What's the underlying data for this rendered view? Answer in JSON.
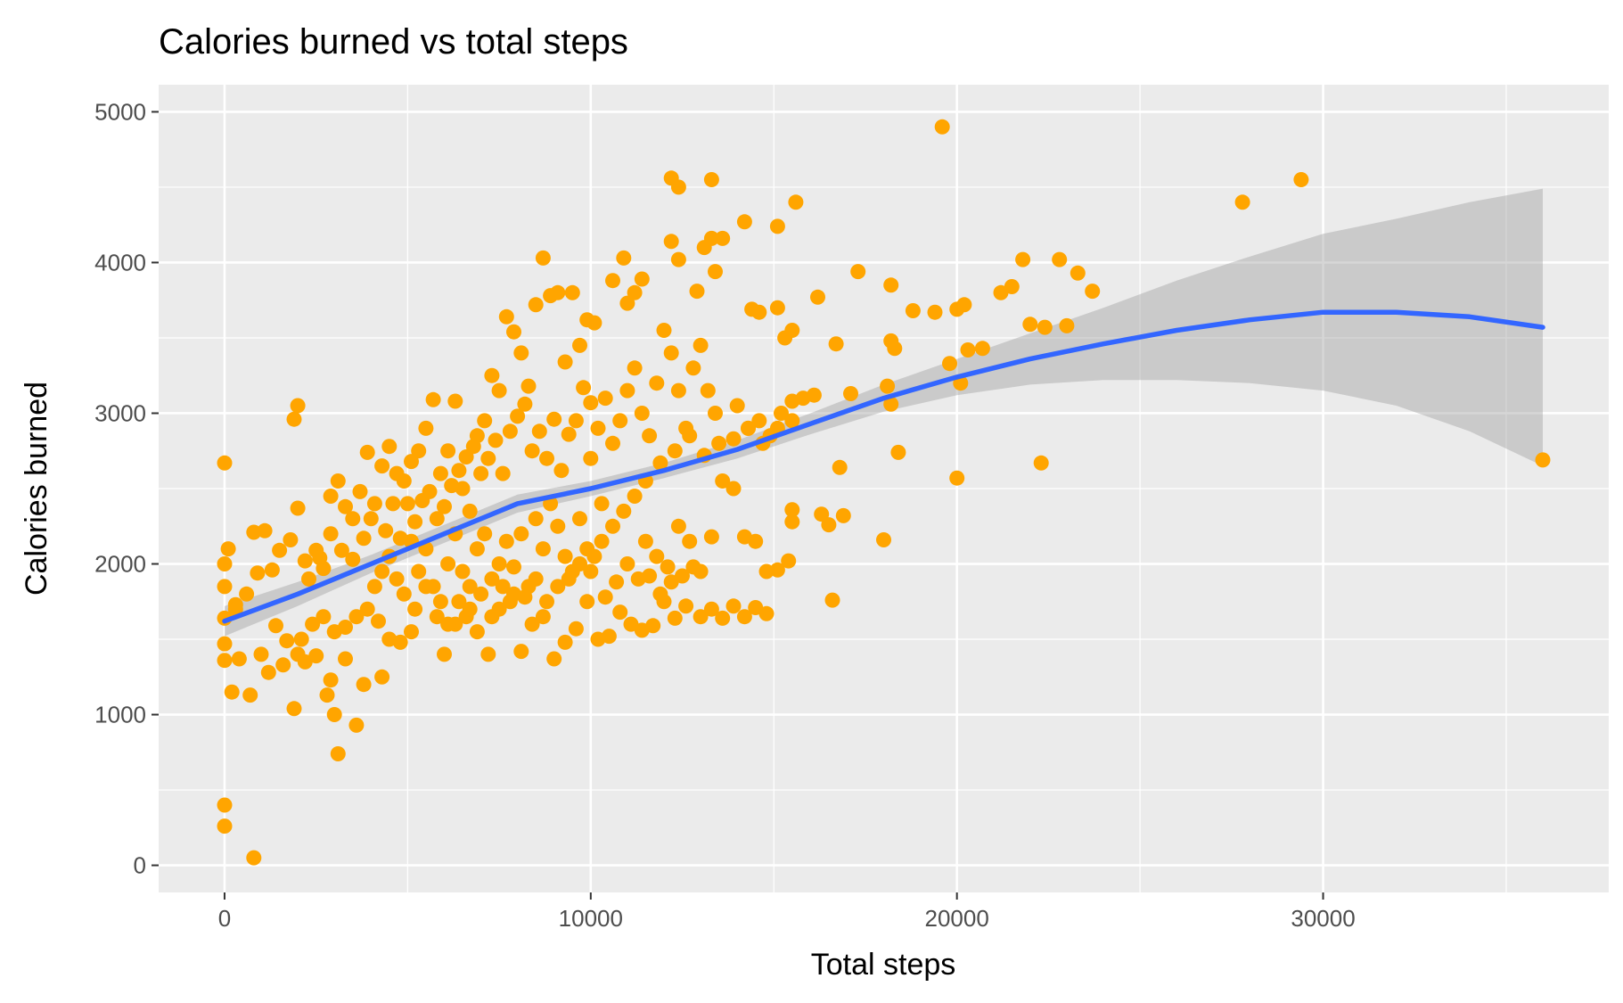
{
  "chart_data": {
    "type": "scatter",
    "title": "Calories burned vs total steps",
    "xlabel": "Total steps",
    "ylabel": "Calories burned",
    "xlim": [
      -1800,
      37800
    ],
    "ylim": [
      -180,
      5180
    ],
    "x_ticks": [
      0,
      10000,
      20000,
      30000
    ],
    "x_tick_labels": [
      "0",
      "10000",
      "20000",
      "30000"
    ],
    "y_ticks": [
      0,
      1000,
      2000,
      3000,
      4000,
      5000
    ],
    "y_tick_labels": [
      "0",
      "1000",
      "2000",
      "3000",
      "4000",
      "5000"
    ],
    "grid": true,
    "legend": "none",
    "colors": {
      "points": "#FFA500",
      "smooth_line": "#3366FF",
      "confidence_band": "#999999",
      "panel_background": "#EBEBEB",
      "grid": "#FFFFFF",
      "tick_text": "#4D4D4D"
    },
    "smooth": {
      "x": [
        0,
        2000,
        4000,
        6000,
        8000,
        10000,
        12000,
        14000,
        16000,
        18000,
        20000,
        22000,
        24000,
        26000,
        28000,
        30000,
        32000,
        34000,
        36000
      ],
      "y": [
        1620,
        1800,
        2000,
        2200,
        2400,
        2500,
        2620,
        2760,
        2930,
        3100,
        3240,
        3360,
        3460,
        3550,
        3620,
        3670,
        3670,
        3640,
        3570
      ],
      "ymin": [
        1520,
        1720,
        1940,
        2140,
        2340,
        2450,
        2570,
        2700,
        2860,
        3010,
        3120,
        3190,
        3220,
        3220,
        3200,
        3150,
        3050,
        2880,
        2650
      ],
      "ymax": [
        1720,
        1880,
        2060,
        2260,
        2460,
        2550,
        2670,
        2820,
        3000,
        3190,
        3360,
        3530,
        3700,
        3880,
        4040,
        4190,
        4290,
        4400,
        4490
      ]
    },
    "points": [
      [
        0,
        2670
      ],
      [
        0,
        2000
      ],
      [
        0,
        1850
      ],
      [
        0,
        1640
      ],
      [
        0,
        1470
      ],
      [
        0,
        1360
      ],
      [
        0,
        400
      ],
      [
        0,
        260
      ],
      [
        800,
        50
      ],
      [
        100,
        2100
      ],
      [
        300,
        1730
      ],
      [
        600,
        1800
      ],
      [
        200,
        1150
      ],
      [
        700,
        1130
      ],
      [
        400,
        1370
      ],
      [
        900,
        1940
      ],
      [
        800,
        2210
      ],
      [
        1100,
        2220
      ],
      [
        1300,
        1960
      ],
      [
        1500,
        2090
      ],
      [
        1800,
        2160
      ],
      [
        2000,
        2370
      ],
      [
        1900,
        2960
      ],
      [
        2000,
        3050
      ],
      [
        1200,
        1280
      ],
      [
        1600,
        1330
      ],
      [
        1900,
        1040
      ],
      [
        2200,
        1350
      ],
      [
        2500,
        1390
      ],
      [
        2800,
        1130
      ],
      [
        3000,
        1000
      ],
      [
        3100,
        740
      ],
      [
        2900,
        1230
      ],
      [
        3300,
        1370
      ],
      [
        3600,
        930
      ],
      [
        3800,
        1200
      ],
      [
        4300,
        1250
      ],
      [
        2100,
        1500
      ],
      [
        2400,
        1600
      ],
      [
        2700,
        1650
      ],
      [
        3000,
        1550
      ],
      [
        3300,
        1580
      ],
      [
        3600,
        1650
      ],
      [
        3900,
        1700
      ],
      [
        4200,
        1620
      ],
      [
        4500,
        1500
      ],
      [
        4800,
        1480
      ],
      [
        5100,
        1550
      ],
      [
        2200,
        2020
      ],
      [
        2500,
        2090
      ],
      [
        2700,
        1970
      ],
      [
        2900,
        2450
      ],
      [
        3100,
        2550
      ],
      [
        3300,
        2380
      ],
      [
        3500,
        2300
      ],
      [
        3700,
        2480
      ],
      [
        3900,
        2740
      ],
      [
        4100,
        2400
      ],
      [
        4300,
        2650
      ],
      [
        4500,
        2780
      ],
      [
        4700,
        2600
      ],
      [
        4900,
        2550
      ],
      [
        5100,
        2680
      ],
      [
        5300,
        2750
      ],
      [
        5500,
        2900
      ],
      [
        5700,
        3090
      ],
      [
        5900,
        2600
      ],
      [
        6100,
        2750
      ],
      [
        6300,
        3080
      ],
      [
        6500,
        2500
      ],
      [
        6700,
        2350
      ],
      [
        6900,
        2850
      ],
      [
        7100,
        2950
      ],
      [
        7300,
        3250
      ],
      [
        7500,
        3150
      ],
      [
        7700,
        3640
      ],
      [
        7900,
        3540
      ],
      [
        8100,
        3400
      ],
      [
        8300,
        3180
      ],
      [
        8500,
        3720
      ],
      [
        8700,
        4030
      ],
      [
        8900,
        3780
      ],
      [
        9100,
        3800
      ],
      [
        9300,
        3340
      ],
      [
        9500,
        3800
      ],
      [
        9700,
        3450
      ],
      [
        9900,
        3620
      ],
      [
        10100,
        3600
      ],
      [
        4100,
        1850
      ],
      [
        4300,
        1950
      ],
      [
        4500,
        2050
      ],
      [
        4700,
        1900
      ],
      [
        4900,
        1800
      ],
      [
        5100,
        2150
      ],
      [
        5300,
        1950
      ],
      [
        5500,
        2100
      ],
      [
        5700,
        1850
      ],
      [
        5900,
        1750
      ],
      [
        6100,
        2000
      ],
      [
        6300,
        2200
      ],
      [
        6500,
        1950
      ],
      [
        6700,
        1850
      ],
      [
        6900,
        2100
      ],
      [
        7100,
        2200
      ],
      [
        7300,
        1900
      ],
      [
        7500,
        2000
      ],
      [
        7700,
        2150
      ],
      [
        7900,
        1980
      ],
      [
        8100,
        2200
      ],
      [
        8300,
        1850
      ],
      [
        8500,
        2300
      ],
      [
        8700,
        2100
      ],
      [
        8900,
        2400
      ],
      [
        9100,
        2250
      ],
      [
        9300,
        2050
      ],
      [
        9500,
        1950
      ],
      [
        9700,
        2300
      ],
      [
        9900,
        2100
      ],
      [
        10100,
        2050
      ],
      [
        10300,
        2400
      ],
      [
        6000,
        1400
      ],
      [
        6300,
        1600
      ],
      [
        6600,
        1650
      ],
      [
        6900,
        1550
      ],
      [
        7200,
        1400
      ],
      [
        7500,
        1700
      ],
      [
        7800,
        1750
      ],
      [
        8100,
        1420
      ],
      [
        8400,
        1600
      ],
      [
        8700,
        1650
      ],
      [
        9000,
        1370
      ],
      [
        9300,
        1480
      ],
      [
        9600,
        1570
      ],
      [
        9900,
        1750
      ],
      [
        10200,
        1500
      ],
      [
        10500,
        1520
      ],
      [
        10800,
        1680
      ],
      [
        11100,
        1600
      ],
      [
        11400,
        1560
      ],
      [
        11700,
        1590
      ],
      [
        12000,
        1750
      ],
      [
        12300,
        1640
      ],
      [
        12600,
        1720
      ],
      [
        13000,
        1650
      ],
      [
        13300,
        1700
      ],
      [
        13600,
        1640
      ],
      [
        13900,
        1720
      ],
      [
        14200,
        1650
      ],
      [
        14500,
        1710
      ],
      [
        14800,
        1670
      ],
      [
        10000,
        2700
      ],
      [
        10200,
        2900
      ],
      [
        10400,
        3100
      ],
      [
        10600,
        2800
      ],
      [
        10800,
        2950
      ],
      [
        11000,
        3150
      ],
      [
        11200,
        3300
      ],
      [
        11400,
        3000
      ],
      [
        11600,
        2850
      ],
      [
        11800,
        3200
      ],
      [
        12000,
        3550
      ],
      [
        12200,
        3400
      ],
      [
        12400,
        3150
      ],
      [
        12600,
        2900
      ],
      [
        12800,
        3300
      ],
      [
        13000,
        3450
      ],
      [
        13200,
        3150
      ],
      [
        13400,
        3000
      ],
      [
        10600,
        3880
      ],
      [
        11000,
        3730
      ],
      [
        11200,
        3800
      ],
      [
        11400,
        3890
      ],
      [
        10900,
        4030
      ],
      [
        12200,
        4560
      ],
      [
        12400,
        4500
      ],
      [
        13300,
        4550
      ],
      [
        12200,
        4140
      ],
      [
        12400,
        4020
      ],
      [
        13100,
        4100
      ],
      [
        13300,
        4160
      ],
      [
        13600,
        4160
      ],
      [
        14200,
        4270
      ],
      [
        15100,
        4240
      ],
      [
        15600,
        4400
      ],
      [
        14400,
        3690
      ],
      [
        14600,
        3670
      ],
      [
        15100,
        3700
      ],
      [
        15300,
        3500
      ],
      [
        15500,
        3550
      ],
      [
        13400,
        3940
      ],
      [
        12900,
        3810
      ],
      [
        16200,
        3770
      ],
      [
        14000,
        3050
      ],
      [
        14300,
        2900
      ],
      [
        14600,
        2950
      ],
      [
        14900,
        2850
      ],
      [
        15200,
        3000
      ],
      [
        15500,
        3080
      ],
      [
        15800,
        3100
      ],
      [
        16100,
        3120
      ],
      [
        13600,
        2550
      ],
      [
        13900,
        2500
      ],
      [
        14200,
        2180
      ],
      [
        14500,
        2150
      ],
      [
        14800,
        1950
      ],
      [
        15100,
        1960
      ],
      [
        15400,
        2020
      ],
      [
        15500,
        2360
      ],
      [
        15500,
        2280
      ],
      [
        16300,
        2330
      ],
      [
        16500,
        2260
      ],
      [
        16900,
        2320
      ],
      [
        16600,
        1760
      ],
      [
        16800,
        2640
      ],
      [
        17100,
        3130
      ],
      [
        16700,
        3460
      ],
      [
        17300,
        3940
      ],
      [
        18200,
        3850
      ],
      [
        18200,
        3480
      ],
      [
        18300,
        3430
      ],
      [
        18200,
        3060
      ],
      [
        18100,
        3180
      ],
      [
        18000,
        2160
      ],
      [
        18400,
        2740
      ],
      [
        18800,
        3680
      ],
      [
        19400,
        3670
      ],
      [
        19600,
        4900
      ],
      [
        19800,
        3330
      ],
      [
        20000,
        3690
      ],
      [
        20100,
        3200
      ],
      [
        20200,
        3720
      ],
      [
        20300,
        3420
      ],
      [
        20000,
        2570
      ],
      [
        20700,
        3430
      ],
      [
        21200,
        3800
      ],
      [
        21500,
        3840
      ],
      [
        21800,
        4020
      ],
      [
        22000,
        3590
      ],
      [
        22400,
        3570
      ],
      [
        22800,
        4020
      ],
      [
        23000,
        3580
      ],
      [
        23300,
        3930
      ],
      [
        23700,
        3810
      ],
      [
        22300,
        2670
      ],
      [
        27800,
        4400
      ],
      [
        29400,
        4550
      ],
      [
        36000,
        2690
      ],
      [
        300,
        1700
      ],
      [
        1000,
        1400
      ],
      [
        1400,
        1590
      ],
      [
        1700,
        1490
      ],
      [
        2000,
        1400
      ],
      [
        2300,
        1900
      ],
      [
        2600,
        2040
      ],
      [
        2900,
        2200
      ],
      [
        3200,
        2090
      ],
      [
        3500,
        2030
      ],
      [
        3800,
        2170
      ],
      [
        4000,
        2300
      ],
      [
        4400,
        2220
      ],
      [
        4600,
        2400
      ],
      [
        4800,
        2170
      ],
      [
        5000,
        2400
      ],
      [
        5200,
        2280
      ],
      [
        5400,
        2420
      ],
      [
        5600,
        2480
      ],
      [
        5800,
        2300
      ],
      [
        6000,
        2380
      ],
      [
        6200,
        2520
      ],
      [
        6400,
        2620
      ],
      [
        6600,
        2710
      ],
      [
        6800,
        2780
      ],
      [
        7000,
        2600
      ],
      [
        7200,
        2700
      ],
      [
        7400,
        2820
      ],
      [
        7600,
        2600
      ],
      [
        7800,
        2880
      ],
      [
        8000,
        2980
      ],
      [
        8200,
        3060
      ],
      [
        8400,
        2750
      ],
      [
        8600,
        2880
      ],
      [
        8800,
        2700
      ],
      [
        9000,
        2960
      ],
      [
        9200,
        2620
      ],
      [
        9400,
        2860
      ],
      [
        9600,
        2950
      ],
      [
        9800,
        3170
      ],
      [
        10000,
        3070
      ],
      [
        5200,
        1700
      ],
      [
        5500,
        1850
      ],
      [
        5800,
        1650
      ],
      [
        6100,
        1600
      ],
      [
        6400,
        1750
      ],
      [
        6700,
        1700
      ],
      [
        7000,
        1800
      ],
      [
        7300,
        1650
      ],
      [
        7600,
        1850
      ],
      [
        7900,
        1800
      ],
      [
        8200,
        1780
      ],
      [
        8500,
        1900
      ],
      [
        8800,
        1750
      ],
      [
        9100,
        1850
      ],
      [
        9400,
        1900
      ],
      [
        9700,
        2000
      ],
      [
        10000,
        1950
      ],
      [
        10300,
        2150
      ],
      [
        10600,
        2250
      ],
      [
        10900,
        2350
      ],
      [
        11200,
        2450
      ],
      [
        11500,
        2150
      ],
      [
        11800,
        2050
      ],
      [
        12100,
        1980
      ],
      [
        12400,
        2250
      ],
      [
        12700,
        2150
      ],
      [
        13000,
        1950
      ],
      [
        13300,
        2180
      ],
      [
        10400,
        1780
      ],
      [
        10700,
        1880
      ],
      [
        11000,
        2000
      ],
      [
        11300,
        1900
      ],
      [
        11600,
        1920
      ],
      [
        11900,
        1800
      ],
      [
        12200,
        1880
      ],
      [
        12500,
        1920
      ],
      [
        12800,
        1980
      ],
      [
        11500,
        2550
      ],
      [
        11900,
        2670
      ],
      [
        12300,
        2750
      ],
      [
        12700,
        2850
      ],
      [
        13100,
        2720
      ],
      [
        13500,
        2800
      ],
      [
        13900,
        2830
      ],
      [
        14300,
        2900
      ],
      [
        14700,
        2800
      ],
      [
        15100,
        2900
      ],
      [
        15500,
        2950
      ]
    ]
  }
}
